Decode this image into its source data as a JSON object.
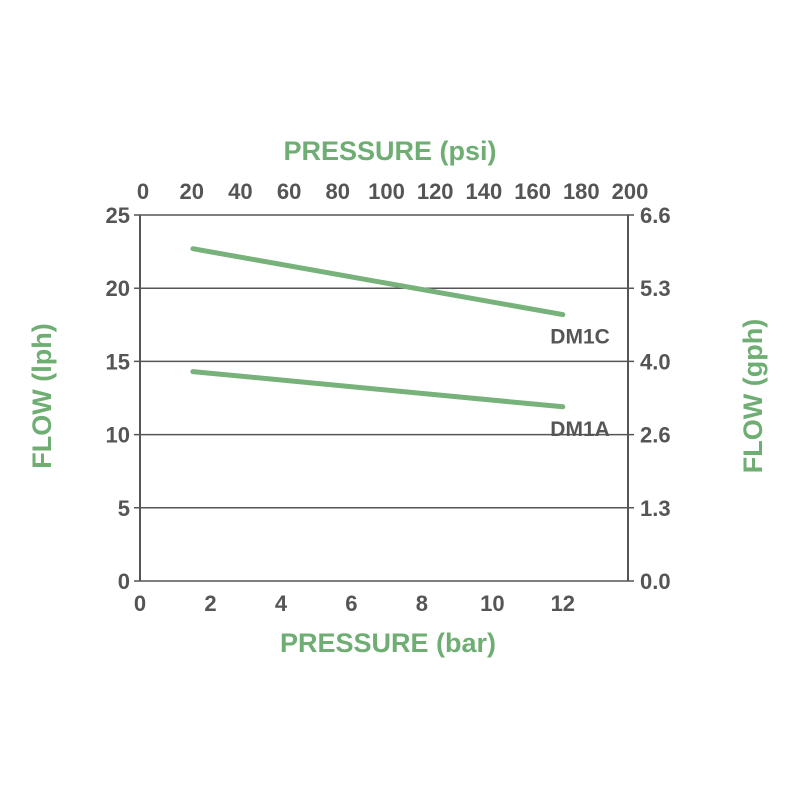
{
  "chart_data": {
    "type": "line",
    "colors": {
      "line": "#77b27a",
      "title": "#6fae73",
      "grid": "#555555",
      "text": "#555555"
    },
    "top_axis": {
      "label": "PRESSURE (psi)",
      "ticks": [
        "0",
        "20",
        "40",
        "60",
        "80",
        "100",
        "120",
        "140",
        "160",
        "180",
        "200"
      ]
    },
    "bottom_axis": {
      "label": "PRESSURE (bar)",
      "ticks": [
        "0",
        "2",
        "4",
        "6",
        "8",
        "10",
        "12"
      ],
      "xlim": [
        0,
        13.85
      ]
    },
    "left_axis": {
      "label": "FLOW (lph)",
      "ticks": [
        "0",
        "5",
        "10",
        "15",
        "20",
        "25"
      ],
      "ylim": [
        0,
        25
      ]
    },
    "right_axis": {
      "label": "FLOW (gph)",
      "ticks": [
        "0.0",
        "1.3",
        "2.6",
        "4.0",
        "5.3",
        "6.6"
      ]
    },
    "grid": "horizontal",
    "series": [
      {
        "name": "DM1C",
        "x": [
          1.5,
          12.0
        ],
        "y": [
          22.7,
          18.2
        ]
      },
      {
        "name": "DM1A",
        "x": [
          1.5,
          12.0
        ],
        "y": [
          14.3,
          11.9
        ]
      }
    ]
  }
}
